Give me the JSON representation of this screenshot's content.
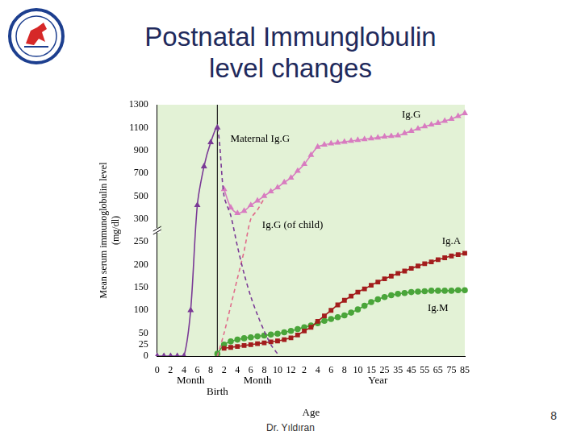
{
  "slide": {
    "title": "Postnatal Immunglobulin level changes",
    "footer": "Dr. Yıldıran",
    "page_number": 8
  },
  "chart_data": {
    "type": "line",
    "xlabel": "Age",
    "ylabel": [
      "Mean serum immunoglobulin level",
      "(mg/dl)"
    ],
    "x_group_labels": [
      "Month",
      "Birth",
      "Month",
      "Year"
    ],
    "categories": [
      "0",
      null,
      "2",
      null,
      "4",
      null,
      "6",
      null,
      "8",
      null,
      "2",
      null,
      "4",
      null,
      "6",
      null,
      "8",
      null,
      "10",
      null,
      "12",
      null,
      "2",
      null,
      "4",
      null,
      "6",
      null,
      "8",
      null,
      "10",
      null,
      "15",
      null,
      "25",
      null,
      "35",
      null,
      "45",
      null,
      "55",
      null,
      "65",
      null,
      "75",
      null,
      "85"
    ],
    "series": [
      {
        "name": "Maternal Ig.G",
        "color": "#7a3a96",
        "marker": "triangle",
        "line_style": "solid_then_dashed",
        "values": [
          0,
          0,
          0,
          0,
          0,
          100,
          420,
          760,
          970,
          1100,
          500,
          330,
          240,
          180,
          130,
          90,
          55,
          25,
          5,
          null,
          null,
          null,
          null,
          null,
          null,
          null,
          null,
          null,
          null,
          null,
          null,
          null,
          null,
          null,
          null,
          null,
          null,
          null,
          null,
          null,
          null,
          null,
          null,
          null,
          null,
          null,
          null
        ]
      },
      {
        "name": "Ig.G",
        "color": "#d87cc0",
        "marker": "triangle",
        "line_style": "solid",
        "values": [
          null,
          null,
          null,
          null,
          null,
          null,
          null,
          null,
          null,
          null,
          560,
          400,
          350,
          370,
          420,
          460,
          500,
          540,
          575,
          620,
          660,
          720,
          780,
          860,
          930,
          950,
          960,
          968,
          975,
          983,
          990,
          998,
          1005,
          1012,
          1020,
          1025,
          1030,
          1050,
          1070,
          1090,
          1110,
          1125,
          1140,
          1158,
          1175,
          1200,
          1225
        ]
      },
      {
        "name": "Ig.G (of child)",
        "color": "#e06b8a",
        "marker": "none",
        "line_style": "dashed",
        "values": [
          null,
          null,
          null,
          null,
          null,
          null,
          null,
          null,
          null,
          0,
          50,
          110,
          170,
          230,
          300,
          380,
          480,
          null,
          null,
          null,
          null,
          null,
          null,
          null,
          null,
          null,
          null,
          null,
          null,
          null,
          null,
          null,
          null,
          null,
          null,
          null,
          null,
          null,
          null,
          null,
          null,
          null,
          null,
          null,
          null,
          null,
          null
        ]
      },
      {
        "name": "Ig.A",
        "color": "#a31d1d",
        "marker": "square",
        "line_style": "solid",
        "values": [
          null,
          null,
          null,
          null,
          null,
          null,
          null,
          null,
          null,
          null,
          17,
          19,
          21,
          23,
          25,
          27,
          29,
          31,
          33,
          36,
          40,
          46,
          55,
          63,
          76,
          88,
          100,
          112,
          122,
          131,
          140,
          147,
          155,
          162,
          169,
          175,
          181,
          186,
          192,
          197,
          202,
          206,
          211,
          215,
          219,
          222,
          225
        ]
      },
      {
        "name": "Ig.M",
        "color": "#4aa53a",
        "marker": "circle",
        "line_style": "solid",
        "values": [
          null,
          null,
          null,
          null,
          null,
          null,
          null,
          null,
          null,
          5,
          25,
          32,
          36,
          39,
          41,
          43,
          45,
          47,
          49,
          52,
          55,
          59,
          63,
          67,
          72,
          77,
          81,
          85,
          89,
          95,
          102,
          110,
          118,
          124,
          129,
          133,
          136,
          138,
          140,
          141,
          142,
          143,
          143,
          143,
          143,
          144,
          144
        ]
      }
    ],
    "ylim": [
      0,
      1300
    ],
    "yticks": [
      0,
      25,
      50,
      100,
      150,
      200,
      250,
      300,
      500,
      700,
      900,
      1100,
      1300
    ],
    "grid": false
  }
}
